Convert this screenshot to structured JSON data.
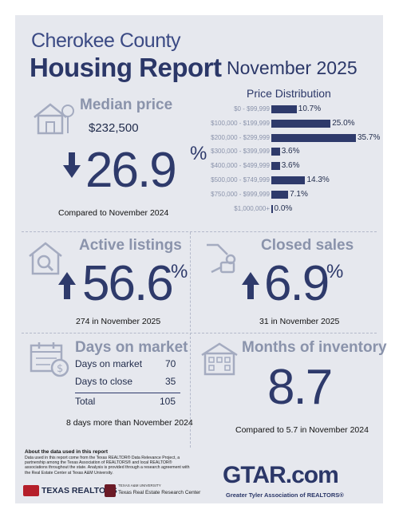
{
  "header": {
    "county": "Cherokee County",
    "report": "Housing Report",
    "month": "November 2025"
  },
  "median": {
    "label": "Median price",
    "value": "$232,500",
    "change": "26.9",
    "pct": "%",
    "direction": "down",
    "caption": "Compared to November 2024"
  },
  "price_distribution": {
    "title": "Price Distribution",
    "rows": [
      {
        "range": "$0 - $99,999",
        "value": "10.7%"
      },
      {
        "range": "$100,000 - $199,999",
        "value": "25.0%"
      },
      {
        "range": "$200,000 - $299,999",
        "value": "35.7%"
      },
      {
        "range": "$300,000 - $399,999",
        "value": "3.6%"
      },
      {
        "range": "$400,000 - $499,999",
        "value": "3.6%"
      },
      {
        "range": "$500,000 - $749,999",
        "value": "14.3%"
      },
      {
        "range": "$750,000 - $999,999",
        "value": "7.1%"
      },
      {
        "range": "$1,000,000+",
        "value": "0.0%"
      }
    ]
  },
  "chart_data": {
    "type": "bar",
    "categories": [
      "$0 - $99,999",
      "$100,000 - $199,999",
      "$200,000 - $299,999",
      "$300,000 - $399,999",
      "$400,000 - $499,999",
      "$500,000 - $749,999",
      "$750,000 - $999,999",
      "$1,000,000+"
    ],
    "values": [
      10.7,
      25.0,
      35.7,
      3.6,
      3.6,
      14.3,
      7.1,
      0.0
    ],
    "title": "Price Distribution",
    "orientation": "horizontal"
  },
  "active": {
    "label": "Active listings",
    "change": "56.6",
    "pct": "%",
    "direction": "up",
    "caption": "274 in November 2025"
  },
  "closed": {
    "label": "Closed sales",
    "change": "6.9",
    "pct": "%",
    "direction": "up",
    "caption": "31 in November 2025"
  },
  "days": {
    "label": "Days on market",
    "rows": [
      {
        "name": "Days on market",
        "value": "70"
      },
      {
        "name": "Days to close",
        "value": "35"
      }
    ],
    "total_label": "Total",
    "total_value": "105",
    "caption": "8 days more than November 2024"
  },
  "inventory": {
    "label": "Months of inventory",
    "value": "8.7",
    "caption": "Compared to 5.7 in November 2024"
  },
  "footer": {
    "title": "About the data used in this report",
    "text": "Data used in this report come from the Texas REALTOR® Data Relevance Project, a partnership among the Texas Association of REALTORS® and local REALTOR® associations throughout the state. Analysis is provided through a research agreement with the Real Estate Center at Texas A&M University.",
    "texas_realtors": "TEXAS REALTORS",
    "tamu_small": "TEXAS A&M UNIVERSITY",
    "tamu_center": "Texas Real Estate Research Center",
    "gtar_logo": "GTAR.com",
    "gtar_name": "Greater Tyler Association of REALTORS®"
  }
}
